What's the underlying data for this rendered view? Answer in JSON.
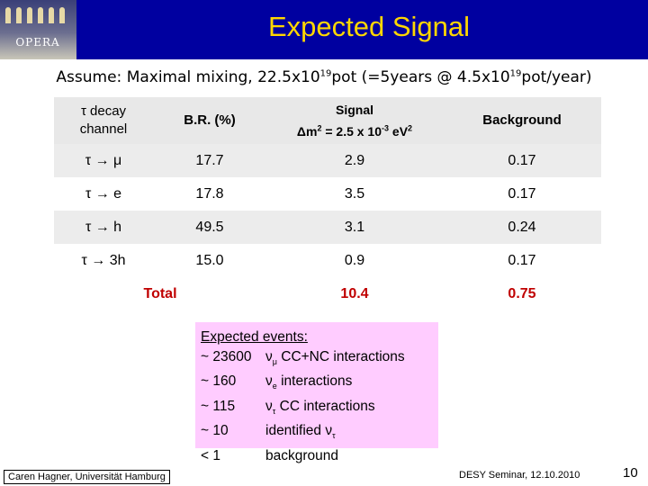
{
  "header": {
    "title": "Expected Signal",
    "logo_text": "OPERA",
    "colors": {
      "band": "#0000a0",
      "title": "#ffd700"
    }
  },
  "subtitle": {
    "prefix": "Assume: Maximal mixing, 22.5x10",
    "exp1": "19",
    "middle": "pot  (=5years @ 4.5x10",
    "exp2": "19",
    "suffix": "pot/year)"
  },
  "table": {
    "headers": {
      "channel_l1": "τ decay",
      "channel_l2": "channel",
      "br": "B.R. (%)",
      "signal_l1": "Signal",
      "signal_l2_pre": "Δm",
      "signal_l2_exp": "2",
      "signal_l2_mid": " = 2.5 x 10",
      "signal_l2_exp2": "-3",
      "signal_l2_unit": " eV",
      "signal_l2_exp3": "2",
      "background": "Background"
    },
    "rows": [
      {
        "channel": "τ → μ",
        "br": "17.7",
        "signal": "2.9",
        "background": "0.17"
      },
      {
        "channel": "τ → e",
        "br": "17.8",
        "signal": "3.5",
        "background": "0.17"
      },
      {
        "channel": "τ → h",
        "br": "49.5",
        "signal": "3.1",
        "background": "0.24"
      },
      {
        "channel": "τ → 3h",
        "br": "15.0",
        "signal": "0.9",
        "background": "0.17"
      }
    ],
    "total": {
      "label": "Total",
      "signal": "10.4",
      "background": "0.75"
    },
    "colors": {
      "total": "#c00000"
    }
  },
  "events": {
    "title": "Expected events:",
    "rows": [
      {
        "count": "~ 23600",
        "nu": "ν",
        "sub": "μ",
        "text": " CC+NC  interactions"
      },
      {
        "count": "~ 160",
        "nu": "ν",
        "sub": "e",
        "text": " interactions"
      },
      {
        "count": "~ 115",
        "nu": "ν",
        "sub": "τ",
        "text": " CC interactions"
      },
      {
        "count": "~ 10",
        "nu": "identified ν",
        "sub": "τ",
        "text": ""
      },
      {
        "count": "< 1",
        "nu": "background",
        "sub": "",
        "text": ""
      }
    ],
    "colors": {
      "box": "#ffccff"
    }
  },
  "footer": {
    "author": "Caren Hagner, Universität Hamburg",
    "event": "DESY Seminar, 12.10.2010",
    "page": "10"
  }
}
